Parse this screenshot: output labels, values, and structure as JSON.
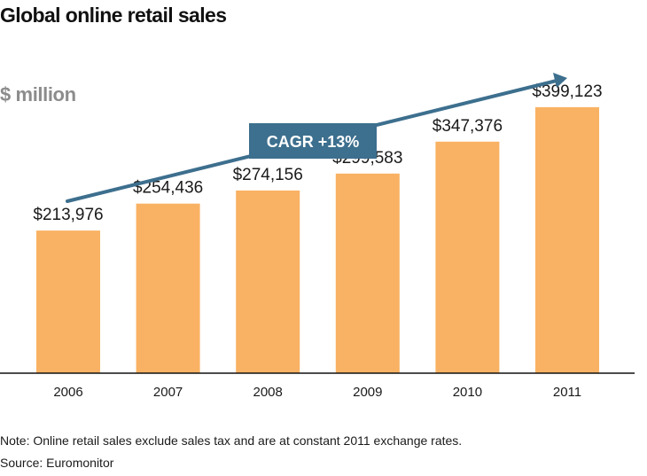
{
  "chart_data": {
    "type": "bar",
    "title": "Global online retail sales",
    "unit_label": "$ million",
    "categories": [
      "2006",
      "2007",
      "2008",
      "2009",
      "2010",
      "2011"
    ],
    "values": [
      213976,
      254436,
      274156,
      299583,
      347376,
      399123
    ],
    "value_labels": [
      "$213,976",
      "$254,436",
      "$274,156",
      "$299,583",
      "$347,376",
      "$399,123"
    ],
    "annotation": "CAGR +13%",
    "ylim": [
      0,
      560000
    ],
    "grid": false,
    "bar_color": "#f9b263",
    "arrow_color": "#3d6f8e"
  },
  "notes": {
    "note": "Note: Online retail sales exclude sales tax and are at constant 2011 exchange rates.",
    "source": "Source: Euromonitor"
  }
}
